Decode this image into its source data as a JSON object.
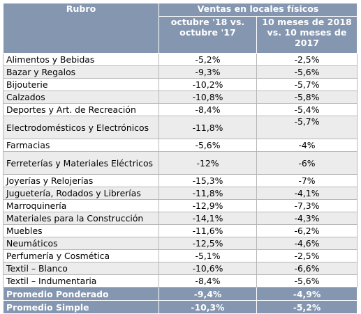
{
  "header": {
    "rubro": "Rubro",
    "group": "Ventas en locales físicos",
    "col1": "octubre '18 vs. octubre '17",
    "col2": "10 meses de 2018 vs. 10 meses de 2017"
  },
  "rows": [
    {
      "rubro": "Alimentos y Bebidas",
      "oct": "-5,2%",
      "ytd": "-2,5%"
    },
    {
      "rubro": "Bazar y Regalos",
      "oct": "-9,3%",
      "ytd": "-5,6%"
    },
    {
      "rubro": "Bijouterie",
      "oct": "-10,2%",
      "ytd": "-5,7%"
    },
    {
      "rubro": "Calzados",
      "oct": "-10,8%",
      "ytd": "-5,8%"
    },
    {
      "rubro": "Deportes y Art. de Recreación",
      "oct": "-8,4%",
      "ytd": "-5,4%"
    },
    {
      "rubro": "Electrodomésticos y Electrónicos",
      "oct": "-11,8%",
      "ytd": "-5,7%"
    },
    {
      "rubro": "Farmacias",
      "oct": "-5,6%",
      "ytd": "-4%"
    },
    {
      "rubro": "Ferreterías y Materiales Eléctricos",
      "oct": "-12%",
      "ytd": "-6%"
    },
    {
      "rubro": "Joyerías y Relojerías",
      "oct": "-15,3%",
      "ytd": "-7%"
    },
    {
      "rubro": "Juguetería, Rodados y Librerías",
      "oct": "-11,8%",
      "ytd": "-4,1%"
    },
    {
      "rubro": "Marroquinería",
      "oct": "-12,9%",
      "ytd": "-7,3%"
    },
    {
      "rubro": "Materiales para la Construcción",
      "oct": "-14,1%",
      "ytd": "-4,3%"
    },
    {
      "rubro": "Muebles",
      "oct": "-11,6%",
      "ytd": "-6,2%"
    },
    {
      "rubro": "Neumáticos",
      "oct": "-12,5%",
      "ytd": "-4,6%"
    },
    {
      "rubro": "Perfumería y Cosmética",
      "oct": "-5,1%",
      "ytd": "-2,5%"
    },
    {
      "rubro": "Textil – Blanco",
      "oct": "-10,6%",
      "ytd": "-6,6%"
    },
    {
      "rubro": "Textil – Indumentaria",
      "oct": "-8,4%",
      "ytd": "-5,6%"
    }
  ],
  "totals": [
    {
      "label": "Promedio Ponderado",
      "oct": "-9,4%",
      "ytd": "-4,9%"
    },
    {
      "label": "Promedio Simple",
      "oct": "-10,3%",
      "ytd": "-5,2%"
    }
  ],
  "colors": {
    "header_bg": "#8496b0",
    "header_text": "#ffffff",
    "alt_row": "#ececec",
    "grid": "#b7b7b7"
  }
}
